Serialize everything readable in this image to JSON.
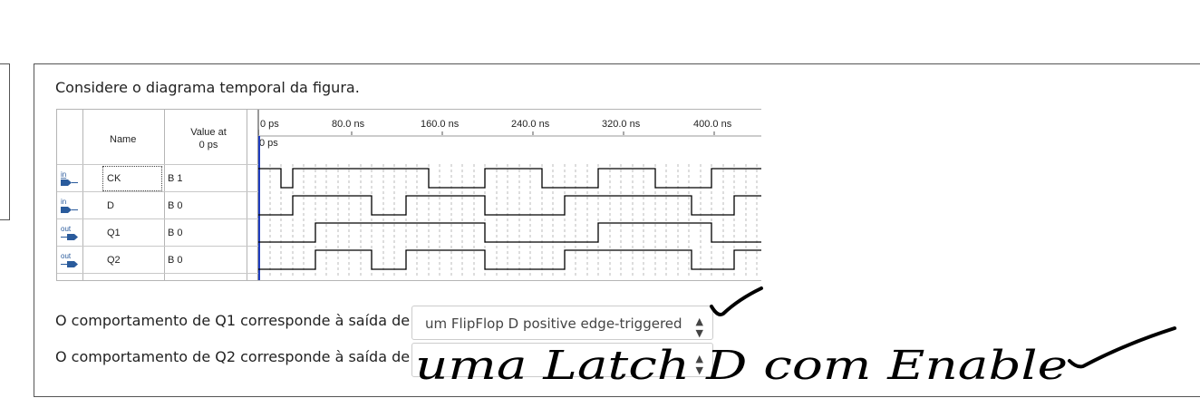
{
  "question": {
    "text": "Considere o diagrama temporal da figura."
  },
  "waveform": {
    "header_name": "Name",
    "header_value_line1": "Value at",
    "header_value_line2": "0 ps",
    "time_labels": [
      "0 ps",
      "80.0 ns",
      "160.0 ns",
      "240.0 ns",
      "320.0 ns",
      "400.0 ns"
    ],
    "cursor_label": "0 ps",
    "signals": [
      {
        "direction": "in",
        "name": "CK",
        "value": "B 1"
      },
      {
        "direction": "in",
        "name": "D",
        "value": "B 0"
      },
      {
        "direction": "out",
        "name": "Q1",
        "value": "B 0"
      },
      {
        "direction": "out",
        "name": "Q2",
        "value": "B 0"
      }
    ],
    "colors": {
      "in_icon": "#2a5b9c",
      "trace": "#000000",
      "cursor": "#1f3dbf"
    }
  },
  "answers": [
    {
      "label": "O comportamento de Q1 corresponde à saída de",
      "selected": "um FlipFlop D positive edge-triggered"
    },
    {
      "label": "O comportamento de Q2 corresponde à saída de",
      "selected": ""
    }
  ],
  "handwriting": {
    "text": "uma Latch D com Enable"
  }
}
